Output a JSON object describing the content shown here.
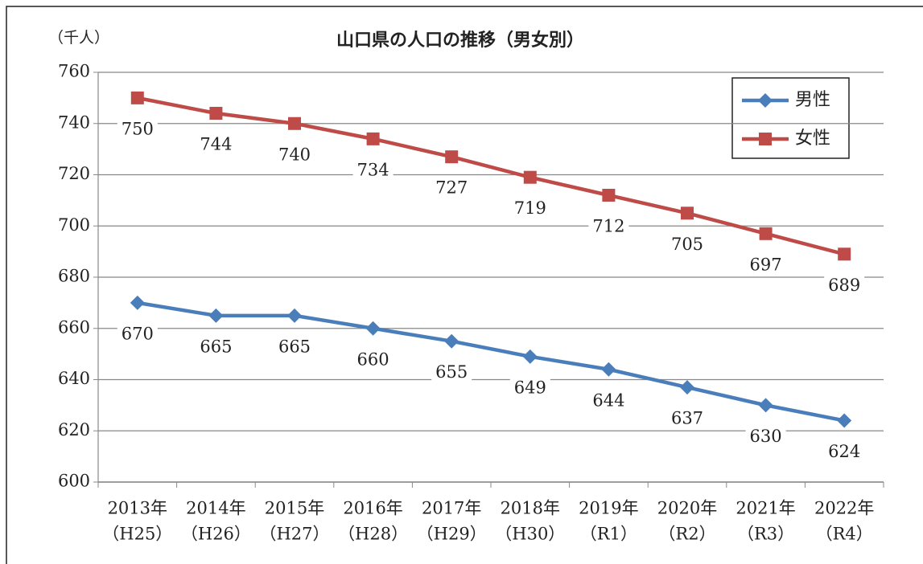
{
  "chart_data": {
    "type": "line",
    "title": "山口県の人口の推移（男女別）",
    "y_label": "（千人）",
    "categories": [
      [
        "2013年",
        "（H25）"
      ],
      [
        "2014年",
        "（H26）"
      ],
      [
        "2015年",
        "（H27）"
      ],
      [
        "2016年",
        "（H28）"
      ],
      [
        "2017年",
        "（H29）"
      ],
      [
        "2018年",
        "（H30）"
      ],
      [
        "2019年",
        "（R1）"
      ],
      [
        "2020年",
        "（R2）"
      ],
      [
        "2021年",
        "（R3）"
      ],
      [
        "2022年",
        "（R4）"
      ]
    ],
    "series": [
      {
        "name": "男性",
        "color": "#4a7ebb",
        "marker": "diamond",
        "values": [
          670,
          665,
          665,
          660,
          655,
          649,
          644,
          637,
          630,
          624
        ]
      },
      {
        "name": "女性",
        "color": "#be4b48",
        "marker": "square",
        "values": [
          750,
          744,
          740,
          734,
          727,
          719,
          712,
          705,
          697,
          689
        ]
      }
    ],
    "ylim": [
      600,
      760
    ],
    "yticks": [
      600,
      620,
      640,
      660,
      680,
      700,
      720,
      740,
      760
    ],
    "grid": true,
    "legend": "upper right"
  }
}
